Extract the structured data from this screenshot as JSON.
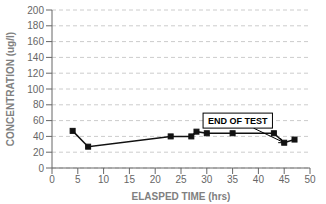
{
  "chart_data": {
    "type": "line",
    "x": [
      4,
      7,
      23,
      27,
      28,
      30,
      35,
      43,
      45,
      47
    ],
    "values": [
      47,
      27,
      40,
      40,
      46,
      44,
      44,
      44,
      32,
      36
    ],
    "xlabel": "ELASPED TIME (hrs)",
    "ylabel": "CONCENTRATION (ug/l)",
    "color": "#111111",
    "marker": "square",
    "xlim": [
      0,
      50
    ],
    "ylim": [
      0,
      200
    ],
    "xticks": [
      0,
      5,
      10,
      15,
      20,
      25,
      30,
      35,
      40,
      45,
      50
    ],
    "yticks": [
      0,
      20,
      40,
      60,
      80,
      100,
      120,
      140,
      160,
      180,
      200
    ],
    "grid": true,
    "annotations": [
      {
        "text": "END OF TEST",
        "x": 45,
        "y": 32,
        "text_x": 36,
        "text_y": 60
      }
    ]
  }
}
